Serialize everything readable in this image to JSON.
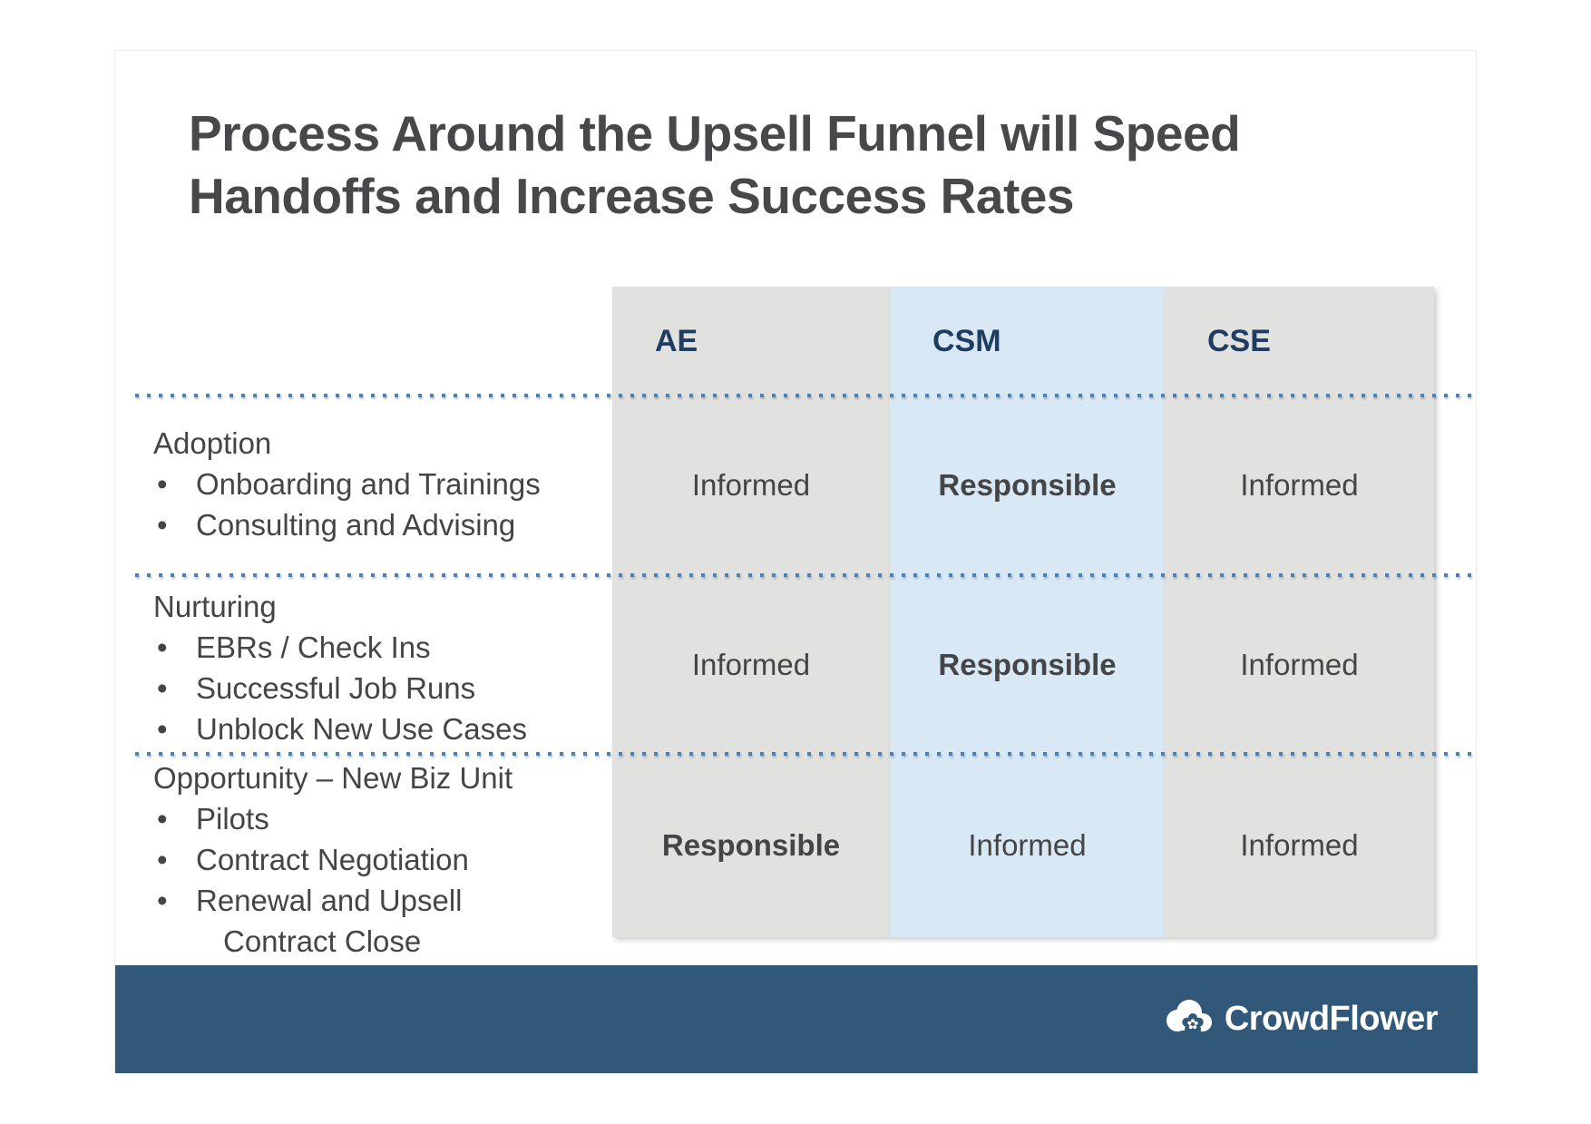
{
  "slide": {
    "title": {
      "line1": "Process Around the Upsell Funnel will Speed",
      "line2": "Handoffs and Increase Success Rates"
    },
    "columns": [
      {
        "label": "AE",
        "highlight": false
      },
      {
        "label": "CSM",
        "highlight": true
      },
      {
        "label": "CSE",
        "highlight": false
      }
    ],
    "rows": [
      {
        "label": "Adoption",
        "bullets": [
          {
            "text": "Onboarding and Trainings"
          },
          {
            "text": "Consulting and Advising"
          }
        ],
        "cells": [
          {
            "text": "Informed",
            "bold": false
          },
          {
            "text": "Responsible",
            "bold": true
          },
          {
            "text": "Informed",
            "bold": false
          }
        ]
      },
      {
        "label": "Nurturing",
        "bullets": [
          {
            "text": "EBRs / Check Ins"
          },
          {
            "text": "Successful Job Runs"
          },
          {
            "text": "Unblock New Use Cases"
          }
        ],
        "cells": [
          {
            "text": "Informed",
            "bold": false
          },
          {
            "text": "Responsible",
            "bold": true
          },
          {
            "text": "Informed",
            "bold": false
          }
        ]
      },
      {
        "label": "Opportunity – New Biz Unit",
        "bullets": [
          {
            "text": "Pilots"
          },
          {
            "text": "Contract Negotiation"
          },
          {
            "text": "Renewal and Upsell",
            "wrap": "Contract Close"
          }
        ],
        "cells": [
          {
            "text": "Responsible",
            "bold": true
          },
          {
            "text": "Informed",
            "bold": false
          },
          {
            "text": "Informed",
            "bold": false
          }
        ]
      }
    ],
    "footer": {
      "brand": "CrowdFlower",
      "logo_icon": "cloud-flower-icon"
    }
  },
  "colors": {
    "title_text": "#48484a",
    "body_text": "#454547",
    "column_gray": "#e1e1df",
    "column_blue": "#d9e8f5",
    "header_text": "#1f3c63",
    "dot_line": "#4d80b5",
    "footer_bg": "#315879",
    "brand_text": "#ffffff"
  }
}
